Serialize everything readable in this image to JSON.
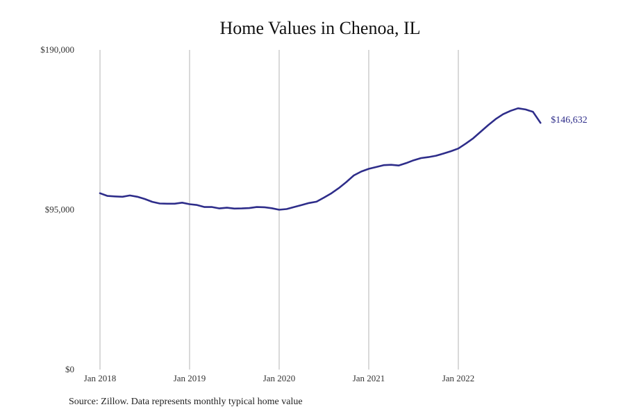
{
  "chart_data": {
    "type": "line",
    "title": "Home Values in Chenoa, IL",
    "xlabel": "",
    "ylabel": "",
    "x_tick_labels": [
      "Jan 2018",
      "Jan 2019",
      "Jan 2020",
      "Jan 2021",
      "Jan 2022"
    ],
    "y_tick_labels": [
      "$0",
      "$95,000",
      "$190,000"
    ],
    "y_ticks": [
      0,
      95000,
      190000
    ],
    "ylim": [
      0,
      190000
    ],
    "x_range": [
      "2018-01",
      "2022-12"
    ],
    "grid": "vertical lines at year starts",
    "line_color": "#2e2d8a",
    "end_label": "$146,632",
    "series": [
      {
        "x": [
          "2018-01",
          "2018-02",
          "2018-03",
          "2018-04",
          "2018-05",
          "2018-06",
          "2018-07",
          "2018-08",
          "2018-09",
          "2018-10",
          "2018-11",
          "2018-12",
          "2019-01",
          "2019-02",
          "2019-03",
          "2019-04",
          "2019-05",
          "2019-06",
          "2019-07",
          "2019-08",
          "2019-09",
          "2019-10",
          "2019-11",
          "2019-12",
          "2020-01",
          "2020-02",
          "2020-03",
          "2020-04",
          "2020-05",
          "2020-06",
          "2020-07",
          "2020-08",
          "2020-09",
          "2020-10",
          "2020-11",
          "2020-12",
          "2021-01",
          "2021-02",
          "2021-03",
          "2021-04",
          "2021-05",
          "2021-06",
          "2021-07",
          "2021-08",
          "2021-09",
          "2021-10",
          "2021-11",
          "2021-12",
          "2022-01",
          "2022-02",
          "2022-03",
          "2022-04",
          "2022-05",
          "2022-06",
          "2022-07",
          "2022-08",
          "2022-09",
          "2022-10",
          "2022-11",
          "2022-12"
        ],
        "values": [
          104800,
          103200,
          102900,
          102700,
          103500,
          102700,
          101400,
          99700,
          98700,
          98600,
          98600,
          99200,
          98300,
          97800,
          96600,
          96600,
          95800,
          96200,
          95700,
          95800,
          96000,
          96600,
          96500,
          95900,
          95000,
          95400,
          96600,
          97800,
          99000,
          99800,
          102200,
          104800,
          107900,
          111500,
          115400,
          117700,
          119300,
          120400,
          121500,
          121700,
          121300,
          122700,
          124400,
          125700,
          126300,
          127100,
          128400,
          129800,
          131400,
          134300,
          137500,
          141400,
          145300,
          148900,
          151800,
          153800,
          155300,
          154600,
          153200,
          146632
        ]
      }
    ]
  },
  "source_note": "Source: Zillow. Data represents monthly typical home value"
}
